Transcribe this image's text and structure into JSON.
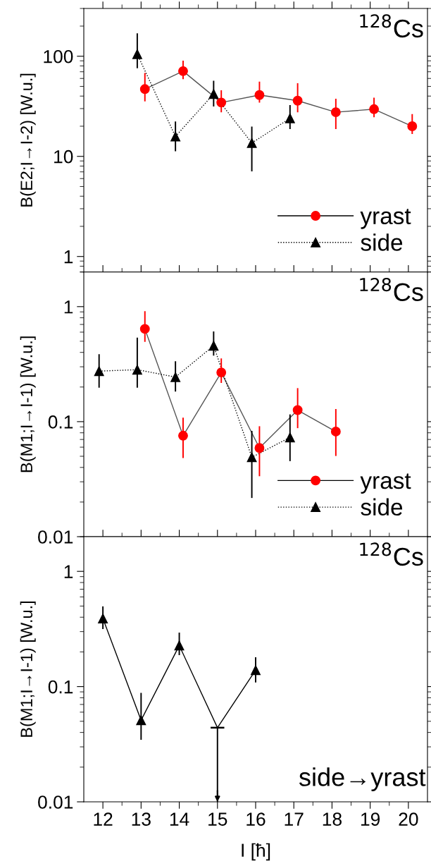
{
  "chart_data": [
    {
      "type": "line",
      "ylabel": "B(E2;I→I-2) [W.u.]",
      "log": "y",
      "ylim": [
        0.7,
        300
      ],
      "yticks": [
        1,
        10,
        100
      ],
      "xlim": [
        11.5,
        20.5
      ],
      "xticks": [
        12,
        {
          "value": 12.5,
          "label": null
        },
        13,
        {
          "value": 13.5,
          "label": null
        },
        14,
        {
          "value": 14.5,
          "label": null
        },
        15,
        {
          "value": 15.5,
          "label": null
        },
        16,
        {
          "value": 16.5,
          "label": null
        },
        17,
        {
          "value": 17.5,
          "label": null
        },
        18,
        {
          "value": 18.5,
          "label": null
        },
        19,
        {
          "value": 19.5,
          "label": null
        },
        20
      ],
      "tick_labels": "y",
      "grid": false,
      "legend": "bottom right",
      "annotations": [
        "$^{128}$Cs"
      ],
      "series": [
        {
          "name": "yrast",
          "color": "#ff0000",
          "marker": "circle",
          "line_style": "solid",
          "x": [
            13.1,
            14.1,
            15.1,
            16.1,
            17.1,
            18.1,
            19.1,
            20.1
          ],
          "values": [
            47,
            71,
            34.5,
            41,
            36,
            27.6,
            29.6,
            20
          ],
          "errors": [
            [
              36,
              67
            ],
            [
              60,
              89
            ],
            [
              28,
              45
            ],
            [
              35,
              55
            ],
            [
              28,
              53
            ],
            [
              19,
              37
            ],
            [
              25,
              38
            ],
            [
              17,
              26
            ]
          ]
        },
        {
          "name": "side",
          "color": "#000000",
          "marker": "triangle",
          "line_style": "dotted",
          "x": [
            12.9,
            13.9,
            14.9,
            15.9,
            16.9
          ],
          "values": [
            105,
            15.8,
            42,
            13.6,
            24
          ],
          "errors": [
            [
              77,
              167
            ],
            [
              11.4,
              22
            ],
            [
              32,
              56
            ],
            [
              7.2,
              19.5
            ],
            [
              19,
              32
            ]
          ]
        }
      ]
    },
    {
      "type": "line",
      "ylabel": "B(M1;I→I-1) [W.u.]",
      "log": "y",
      "ylim": [
        0.01,
        2
      ],
      "yticks": [
        0.01,
        0.1,
        1
      ],
      "xlim": [
        11.5,
        20.5
      ],
      "xticks": [
        12,
        {
          "value": 12.5,
          "label": null
        },
        13,
        {
          "value": 13.5,
          "label": null
        },
        14,
        {
          "value": 14.5,
          "label": null
        },
        15,
        {
          "value": 15.5,
          "label": null
        },
        16,
        {
          "value": 16.5,
          "label": null
        },
        17,
        {
          "value": 17.5,
          "label": null
        },
        18,
        {
          "value": 18.5,
          "label": null
        },
        19,
        {
          "value": 19.5,
          "label": null
        },
        20
      ],
      "tick_labels": "y",
      "grid": false,
      "legend": "bottom right",
      "annotations": [
        "$^{128}$Cs"
      ],
      "series": [
        {
          "name": "yrast",
          "color": "#ff0000",
          "marker": "circle",
          "line_style": "solid",
          "x": [
            13.1,
            14.1,
            15.1,
            16.1,
            17.1,
            18.1
          ],
          "values": [
            0.64,
            0.0755,
            0.268,
            0.059,
            0.126,
            0.082
          ],
          "errors": [
            [
              0.5,
              0.9
            ],
            [
              0.049,
              0.107
            ],
            [
              0.22,
              0.35
            ],
            [
              0.034,
              0.09
            ],
            [
              0.089,
              0.193
            ],
            [
              0.051,
              0.127
            ]
          ]
        },
        {
          "name": "side",
          "color": "#000000",
          "marker": "triangle",
          "line_style": "dotted",
          "x": [
            11.9,
            12.9,
            13.9,
            14.9,
            15.9,
            16.9
          ],
          "values": [
            0.275,
            0.283,
            0.244,
            0.457,
            0.049,
            0.073
          ],
          "errors": [
            [
              0.2,
              0.38
            ],
            [
              0.2,
              0.53
            ],
            [
              0.185,
              0.33
            ],
            [
              0.38,
              0.6
            ],
            [
              0.022,
              0.082
            ],
            [
              0.046,
              0.114
            ]
          ]
        }
      ]
    },
    {
      "type": "line",
      "ylabel": "B(M1;I→I-1) [W.u.]",
      "xlabel": "I [ħ]",
      "log": "y",
      "ylim": [
        0.01,
        2
      ],
      "yticks": [
        0.01,
        0.1,
        1
      ],
      "xlim": [
        11.5,
        20.5
      ],
      "xticks": [
        12,
        {
          "value": 12.5,
          "label": null
        },
        13,
        {
          "value": 13.5,
          "label": null
        },
        14,
        {
          "value": 14.5,
          "label": null
        },
        15,
        {
          "value": 15.5,
          "label": null
        },
        16,
        {
          "value": 16.5,
          "label": null
        },
        17,
        {
          "value": 17.5,
          "label": null
        },
        18,
        {
          "value": 18.5,
          "label": null
        },
        19,
        {
          "value": 19.5,
          "label": null
        },
        20
      ],
      "grid": false,
      "legend": false,
      "annotations": [
        "$^{128}$Cs",
        "side→yrast"
      ],
      "series": [
        {
          "type": "line",
          "color": "#000000",
          "marker": "none",
          "line_style": "solid",
          "x": [
            12,
            13,
            14,
            15,
            16
          ],
          "values": [
            0.39,
            0.051,
            0.227,
            0.044,
            0.139
          ],
          "errors": [
            null,
            null,
            null,
            [
              0.01,
              0.044
            ],
            null
          ]
        },
        {
          "type": "scatter",
          "color": "#000000",
          "marker": "triangle",
          "x": [
            12,
            13,
            14,
            16
          ],
          "values": [
            0.39,
            0.051,
            0.227,
            0.139
          ],
          "errors": [
            [
              0.32,
              0.49
            ],
            [
              0.035,
              0.087
            ],
            [
              0.19,
              0.29
            ],
            [
              0.11,
              0.177
            ]
          ]
        }
      ]
    }
  ]
}
